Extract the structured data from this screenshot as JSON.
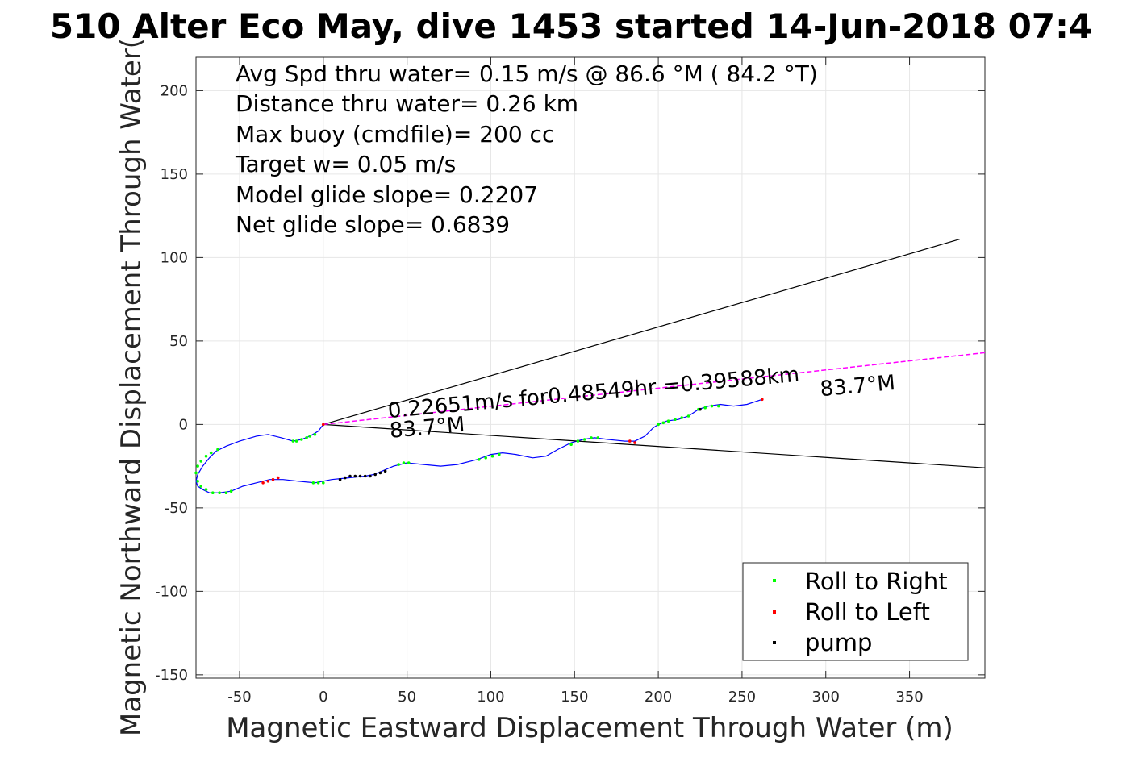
{
  "chart_data": {
    "type": "line",
    "title": "510 Alter Eco May, dive 1453 started 14-Jun-2018 07:4",
    "xlabel": "Magnetic Eastward Displacement Through Water (m)",
    "ylabel": "Magnetic Northward Displacement Through Water(",
    "xlim": [
      -76,
      395
    ],
    "ylim": [
      -152,
      220
    ],
    "xticks": [
      -50,
      0,
      50,
      100,
      150,
      200,
      250,
      300,
      350
    ],
    "yticks": [
      -150,
      -100,
      -50,
      0,
      50,
      100,
      150,
      200
    ],
    "xtick_labels": [
      "-50",
      "0",
      "50",
      "100",
      "150",
      "200",
      "250",
      "300",
      "350"
    ],
    "ytick_labels": [
      "-150",
      "-100",
      "-50",
      "0",
      "50",
      "100",
      "150",
      "200"
    ],
    "grid": true,
    "legend_placement": "bottom-right",
    "info_lines": [
      "Avg Spd thru water=  0.15 m/s @  86.6 °M ( 84.2 °T)",
      "Distance thru water=  0.26 km",
      "Max buoy (cmdfile)= 200 cc",
      "Target w= 0.05 m/s",
      "Model glide slope= 0.2207",
      "Net glide slope= 0.6839"
    ],
    "annotations": [
      {
        "text": "0.22651m/s for0.48549hr =0.39588km",
        "x": 39,
        "y": 4,
        "angle": -5.1
      },
      {
        "text": "83.7°M",
        "x": 40,
        "y": -8,
        "angle": -5.1
      },
      {
        "text": "83.7°M",
        "x": 297,
        "y": 17,
        "angle": -5.1
      }
    ],
    "series": [
      {
        "name": "track",
        "color": "#0000ff",
        "x": [
          0,
          -3,
          -8,
          -13,
          -18,
          -25,
          -33,
          -40,
          -50,
          -58,
          -64,
          -68,
          -72,
          -75,
          -76,
          -75,
          -72,
          -68,
          -62,
          -55,
          -48,
          -40,
          -32,
          -24,
          -15,
          -5,
          5,
          15,
          25,
          30,
          35,
          42,
          50,
          60,
          70,
          80,
          92,
          100,
          107,
          115,
          125,
          133,
          140,
          148,
          155,
          162,
          170,
          180,
          186,
          192,
          197,
          200,
          205,
          212,
          218,
          224,
          230,
          237,
          245,
          253,
          262
        ],
        "y": [
          0,
          -4,
          -7,
          -9,
          -10,
          -8,
          -6,
          -7,
          -10,
          -13,
          -16,
          -20,
          -25,
          -30,
          -34,
          -37,
          -39,
          -41,
          -41,
          -40,
          -37,
          -35,
          -33,
          -33,
          -34,
          -35,
          -33,
          -32,
          -31,
          -30,
          -28,
          -25,
          -23,
          -24,
          -25,
          -24,
          -21,
          -18,
          -17,
          -18,
          -20,
          -19,
          -15,
          -11,
          -9,
          -8,
          -9,
          -10,
          -10,
          -7,
          -2,
          0,
          2,
          3,
          5,
          9,
          11,
          12,
          11,
          12,
          15
        ]
      },
      {
        "name": "Roll to Right",
        "color": "#00ff00",
        "x": [
          -18,
          -16,
          -13,
          -10,
          -8,
          -5,
          -63,
          -67,
          -70,
          -73,
          -75,
          -76,
          -75,
          -73,
          -70,
          -66,
          -62,
          -58,
          -55,
          -6,
          -3,
          0,
          45,
          48,
          51,
          93,
          97,
          101,
          105,
          148,
          152,
          156,
          160,
          164,
          200,
          203,
          206,
          210,
          214,
          218,
          224,
          228,
          232,
          236
        ],
        "y": [
          -10,
          -10,
          -9,
          -8,
          -7,
          -6,
          -15,
          -17,
          -19,
          -22,
          -25,
          -29,
          -34,
          -37,
          -39,
          -41,
          -41,
          -41,
          -40,
          -35,
          -35,
          -35,
          -24,
          -23,
          -23,
          -21,
          -20,
          -19,
          -18,
          -12,
          -10,
          -9,
          -8,
          -8,
          0,
          1,
          2,
          3,
          4,
          5,
          9,
          10,
          11,
          11
        ]
      },
      {
        "name": "Roll to Left",
        "color": "#ff0000",
        "x": [
          -36,
          -33,
          -30,
          -27,
          0,
          183,
          186,
          262
        ],
        "y": [
          -35,
          -34,
          -33,
          -32,
          0,
          -10,
          -11,
          15
        ]
      },
      {
        "name": "pump",
        "color": "#000000",
        "x": [
          10,
          13,
          16,
          19,
          22,
          25,
          28,
          31,
          34,
          37,
          225
        ],
        "y": [
          -33,
          -32,
          -31,
          -31,
          -31,
          -31,
          -31,
          -30,
          -29,
          -28,
          9
        ]
      },
      {
        "name": "cone-upper",
        "color": "#000000",
        "x": [
          0,
          380
        ],
        "y": [
          0,
          111
        ]
      },
      {
        "name": "cone-lower",
        "color": "#000000",
        "x": [
          0,
          395
        ],
        "y": [
          0,
          -26
        ]
      },
      {
        "name": "current-line",
        "color": "#ff00ff",
        "x": [
          0,
          395
        ],
        "y": [
          0,
          43
        ]
      }
    ]
  }
}
